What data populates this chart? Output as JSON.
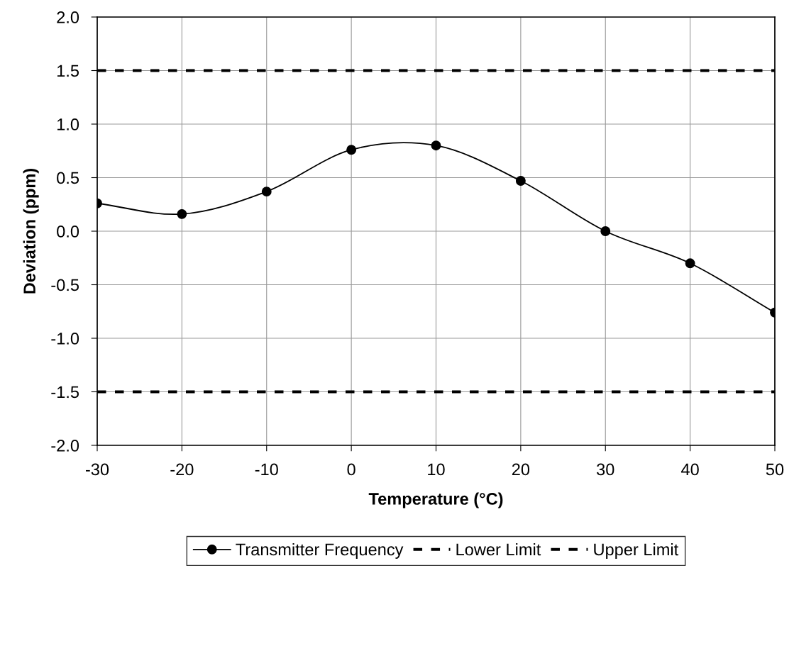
{
  "chart_data": {
    "type": "line",
    "xlabel": "Temperature (°C)",
    "ylabel": "Deviation (ppm)",
    "xlim": [
      -30,
      50
    ],
    "xticks": [
      -30,
      -20,
      -10,
      0,
      10,
      20,
      30,
      40,
      50
    ],
    "ylim": [
      -2.0,
      2.0
    ],
    "yticks": [
      {
        "value": -2.0,
        "label": "-2.0"
      },
      {
        "value": -1.5,
        "label": "-1.5"
      },
      {
        "value": -1.0,
        "label": "-1.0"
      },
      {
        "value": -0.5,
        "label": "-0.5"
      },
      {
        "value": 0.0,
        "label": "0.0"
      },
      {
        "value": 0.5,
        "label": "0.5"
      },
      {
        "value": 1.0,
        "label": "1.0"
      },
      {
        "value": 1.5,
        "label": "1.5"
      },
      {
        "value": 2.0,
        "label": "2.0"
      }
    ],
    "grid": true,
    "legend": "bottom",
    "series": [
      {
        "name": "Transmitter Frequency",
        "color": "#000000",
        "marker": "circle",
        "line_style": "solid",
        "x": [
          -30,
          -20,
          -10,
          0,
          10,
          20,
          30,
          40,
          50
        ],
        "values": [
          0.26,
          0.16,
          0.37,
          0.76,
          0.8,
          0.47,
          0.0,
          -0.3,
          -0.76
        ]
      },
      {
        "name": "Lower Limit",
        "color": "#000000",
        "marker": "none",
        "line_style": "dashed",
        "x": [
          -30,
          50
        ],
        "values": [
          -1.5,
          -1.5
        ]
      },
      {
        "name": "Upper Limit",
        "color": "#000000",
        "marker": "none",
        "line_style": "dashed",
        "x": [
          -30,
          50
        ],
        "values": [
          1.5,
          1.5
        ]
      }
    ]
  }
}
